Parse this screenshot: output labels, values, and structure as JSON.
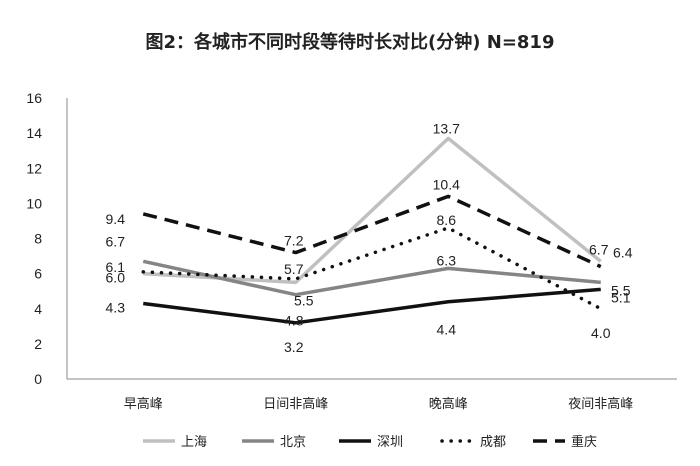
{
  "chart_data": {
    "type": "line",
    "title": "图2：各城市不同时段等待时长对比(分钟)    N=819",
    "categories": [
      "早高峰",
      "日间非高峰",
      "晚高峰",
      "夜间非高峰"
    ],
    "ylim": [
      0,
      16
    ],
    "yticks": [
      0,
      2,
      4,
      6,
      8,
      10,
      12,
      14,
      16
    ],
    "grid": false,
    "legend_position": "bottom",
    "series": [
      {
        "name": "上海",
        "values": [
          6.0,
          5.5,
          13.7,
          6.7
        ],
        "color": "#c0c0c0",
        "style": "solid"
      },
      {
        "name": "北京",
        "values": [
          6.7,
          4.8,
          6.3,
          5.5
        ],
        "color": "#858585",
        "style": "solid"
      },
      {
        "name": "深圳",
        "values": [
          4.3,
          3.2,
          4.4,
          5.1
        ],
        "color": "#111111",
        "style": "solid"
      },
      {
        "name": "成都",
        "values": [
          6.1,
          5.7,
          8.6,
          4.0
        ],
        "color": "#111111",
        "style": "dotted"
      },
      {
        "name": "重庆",
        "values": [
          9.4,
          7.2,
          10.4,
          6.4
        ],
        "color": "#111111",
        "style": "dashed"
      }
    ]
  }
}
